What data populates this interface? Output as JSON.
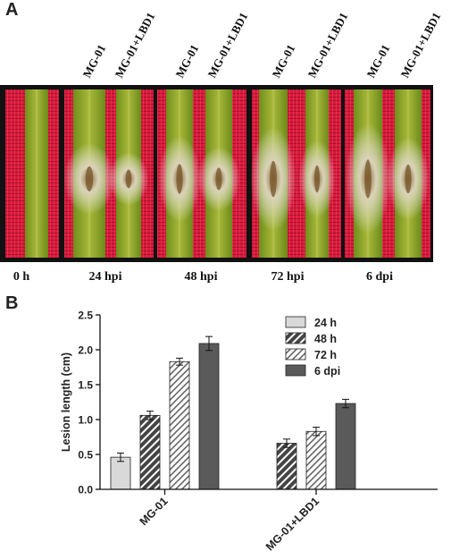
{
  "panel_a": {
    "letter": "A",
    "sample_labels": [
      "MG-01",
      "MG-01+LBD1",
      "MG-01",
      "MG-01+LBD1",
      "MG-01",
      "MG-01+LBD1",
      "MG-01",
      "MG-01+LBD1"
    ],
    "timepoints": [
      "0 h",
      "24 hpi",
      "48 hpi",
      "72 hpi",
      "6 dpi"
    ]
  },
  "panel_b": {
    "letter": "B"
  },
  "chart_data": {
    "type": "bar",
    "categories": [
      "MG-01",
      "MG-01+LBD1"
    ],
    "ylabel": "Lesion length (cm)",
    "ylim": [
      0,
      2.5
    ],
    "yticks": [
      "0.0",
      "0.5",
      "1.0",
      "1.5",
      "2.0",
      "2.5"
    ],
    "legend_position": "top-right",
    "series": [
      {
        "name": "24 h",
        "values": [
          0.46,
          null
        ],
        "errors": [
          0.06,
          null
        ],
        "color": "#d9d9d9",
        "pattern": "solid-light"
      },
      {
        "name": "48 h",
        "values": [
          1.06,
          0.66
        ],
        "errors": [
          0.06,
          0.06
        ],
        "color": "#555555",
        "pattern": "dense-hatch"
      },
      {
        "name": "72 h",
        "values": [
          1.83,
          0.83
        ],
        "errors": [
          0.05,
          0.06
        ],
        "color": "#bbbbbb",
        "pattern": "light-hatch"
      },
      {
        "name": "6 dpi",
        "values": [
          2.09,
          1.23
        ],
        "errors": [
          0.1,
          0.06
        ],
        "color": "#5a5a5a",
        "pattern": "solid-dark"
      }
    ]
  }
}
